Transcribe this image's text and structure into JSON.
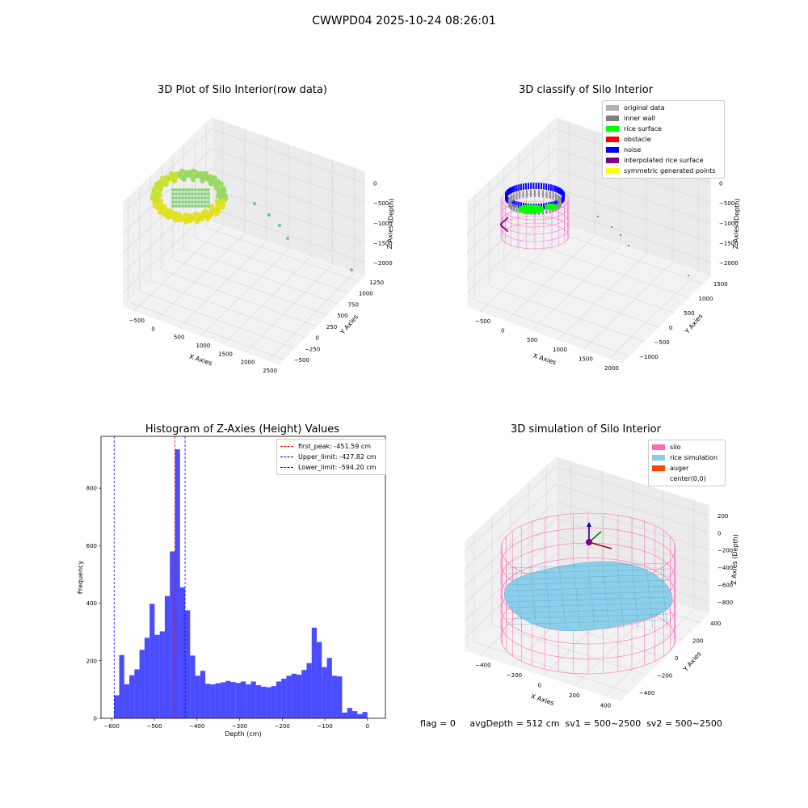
{
  "suptitle": "CWWPD04 2025-10-24 08:26:01",
  "status_text": "flag = 0     avgDepth = 512 cm  sv1 = 500~2500  sv2 = 500~2500",
  "panels": {
    "raw": {
      "title": "3D Plot of Silo Interior(row data)",
      "xlabel": "X Axies",
      "ylabel": "Y Axies",
      "zlabel": "Z Axies (Depth)",
      "xticks": [
        "−500",
        "0",
        "500",
        "1000",
        "1500",
        "2000",
        "2500"
      ],
      "yticks": [
        "−500",
        "−250",
        "0",
        "250",
        "500",
        "750",
        "1000",
        "1250"
      ],
      "zticks": [
        "0",
        "−500",
        "−1000",
        "−1500",
        "−2000"
      ]
    },
    "classify": {
      "title": "3D classify of Silo Interior",
      "xlabel": "X Axies",
      "ylabel": "Y Axies",
      "zlabel": "Z Axies (Depth)",
      "xticks": [
        "−500",
        "0",
        "500",
        "1000",
        "1500",
        "2000"
      ],
      "yticks": [
        "−1000",
        "−500",
        "0",
        "500",
        "1000",
        "1500"
      ],
      "zticks": [
        "0",
        "−500",
        "−1000",
        "−1500",
        "−2000"
      ],
      "legend": [
        {
          "label": "original data",
          "color": "#b0b0b0"
        },
        {
          "label": "inner wall",
          "color": "#808080"
        },
        {
          "label": "rice surface",
          "color": "#00ff00"
        },
        {
          "label": "obstacle",
          "color": "#ff0000"
        },
        {
          "label": "noise",
          "color": "#0000ff"
        },
        {
          "label": "interpolated rice surface",
          "color": "#800080"
        },
        {
          "label": "symmetric generated points",
          "color": "#ffff00"
        }
      ]
    },
    "simulation": {
      "title": "3D simulation of Silo Interior",
      "xlabel": "X Axies",
      "ylabel": "Y Axies",
      "zlabel": "Z Axies (Depth)",
      "xticks": [
        "−400",
        "−200",
        "0",
        "200",
        "400"
      ],
      "yticks": [
        "−400",
        "−200",
        "0",
        "200",
        "400"
      ],
      "zticks": [
        "200",
        "0",
        "−200",
        "−400",
        "−600",
        "−800"
      ],
      "legend": [
        {
          "label": "silo",
          "color": "#ff69b4"
        },
        {
          "label": "rice simulation",
          "color": "#87ceeb"
        },
        {
          "label": "auger",
          "color": "#ff4500"
        },
        {
          "label": "center(0,0)",
          "color": "#ffffff"
        }
      ]
    }
  },
  "chart_data": {
    "type": "bar",
    "title": "Histogram of Z-Axies (Height) Values",
    "xlabel": "Depth (cm)",
    "ylabel": "Frequency",
    "xlim": [
      -625,
      42
    ],
    "ylim": [
      0,
      980
    ],
    "xticks": [
      -600,
      -500,
      -400,
      -300,
      -200,
      -100,
      0
    ],
    "yticks": [
      0,
      200,
      400,
      600,
      800
    ],
    "bin_start": -594.2,
    "bin_width": 11.88,
    "bar_color": "#0000ff",
    "values": [
      80,
      220,
      118,
      150,
      170,
      238,
      280,
      398,
      290,
      302,
      425,
      580,
      935,
      455,
      375,
      218,
      148,
      165,
      120,
      118,
      122,
      125,
      130,
      126,
      123,
      128,
      118,
      128,
      115,
      110,
      108,
      112,
      128,
      138,
      148,
      155,
      152,
      168,
      192,
      315,
      265,
      178,
      210,
      148,
      146,
      20,
      36,
      25,
      15,
      22
    ],
    "vlines": [
      {
        "label": "first_peak: -451.59 cm",
        "x": -451.59,
        "color": "#ff0000"
      },
      {
        "label": "Upper_limit: -427.82 cm",
        "x": -427.82,
        "color": "#0000ff"
      },
      {
        "label": "Lower_limit: -594.20 cm",
        "x": -594.2,
        "color": "#0000ff"
      }
    ]
  }
}
